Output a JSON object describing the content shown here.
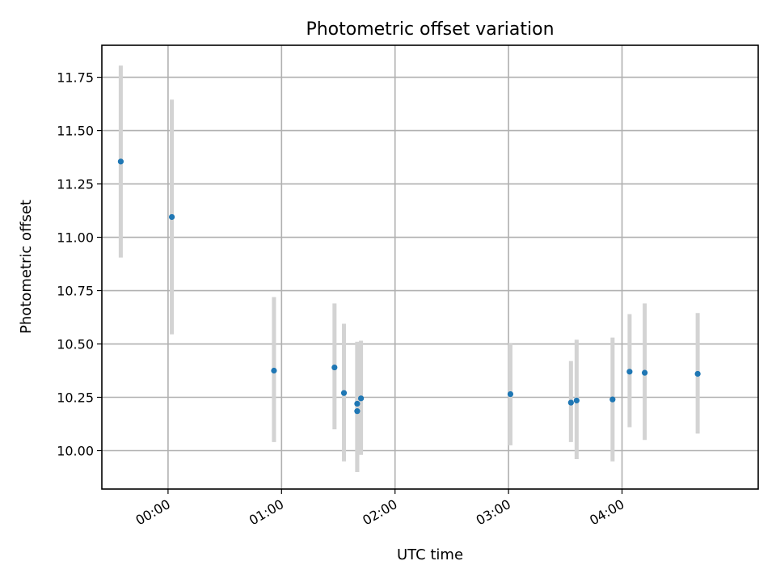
{
  "chart_data": {
    "type": "scatter",
    "title": "Photometric offset variation",
    "xlabel": "UTC time",
    "ylabel": "Photometric offset",
    "x_is_time": true,
    "xlim": [
      "23:25",
      "05:12"
    ],
    "ylim": [
      9.82,
      11.9
    ],
    "x_ticks": [
      "00:00",
      "01:00",
      "02:00",
      "03:00",
      "04:00"
    ],
    "y_ticks": [
      "10.00",
      "10.25",
      "10.50",
      "10.75",
      "11.00",
      "11.25",
      "11.50",
      "11.75"
    ],
    "grid": true,
    "marker_color": "#1f77b4",
    "errorbar_color": "#d3d3d3",
    "points": [
      {
        "x": "23:35",
        "y": 11.355,
        "yerr_low": 10.905,
        "yerr_high": 11.805
      },
      {
        "x": "00:02",
        "y": 11.095,
        "yerr_low": 10.545,
        "yerr_high": 11.645
      },
      {
        "x": "00:56",
        "y": 10.375,
        "yerr_low": 10.04,
        "yerr_high": 10.72
      },
      {
        "x": "01:28",
        "y": 10.39,
        "yerr_low": 10.1,
        "yerr_high": 10.69
      },
      {
        "x": "01:33",
        "y": 10.27,
        "yerr_low": 9.95,
        "yerr_high": 10.595
      },
      {
        "x": "01:40",
        "y": 10.22,
        "yerr_low": 9.9,
        "yerr_high": 10.51
      },
      {
        "x": "01:40",
        "y": 10.185,
        "yerr_low": 9.9,
        "yerr_high": 10.51
      },
      {
        "x": "01:42",
        "y": 10.245,
        "yerr_low": 9.98,
        "yerr_high": 10.515
      },
      {
        "x": "03:01",
        "y": 10.265,
        "yerr_low": 10.025,
        "yerr_high": 10.505
      },
      {
        "x": "03:33",
        "y": 10.225,
        "yerr_low": 10.04,
        "yerr_high": 10.42
      },
      {
        "x": "03:36",
        "y": 10.235,
        "yerr_low": 9.96,
        "yerr_high": 10.52
      },
      {
        "x": "03:55",
        "y": 10.24,
        "yerr_low": 9.95,
        "yerr_high": 10.53
      },
      {
        "x": "04:04",
        "y": 10.37,
        "yerr_low": 10.11,
        "yerr_high": 10.64
      },
      {
        "x": "04:12",
        "y": 10.365,
        "yerr_low": 10.05,
        "yerr_high": 10.69
      },
      {
        "x": "04:40",
        "y": 10.36,
        "yerr_low": 10.08,
        "yerr_high": 10.645
      }
    ]
  }
}
